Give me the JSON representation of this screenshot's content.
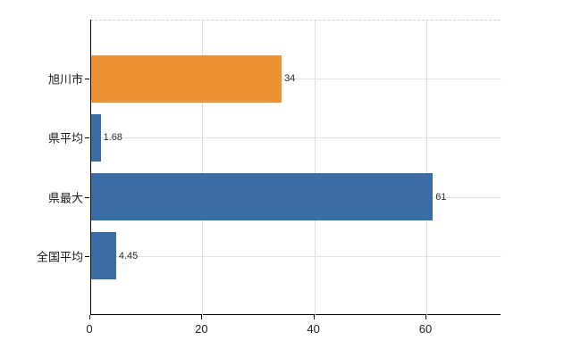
{
  "chart_data": {
    "type": "bar",
    "orientation": "horizontal",
    "title": "",
    "xlabel": "",
    "ylabel": "",
    "categories": [
      "旭川市",
      "県平均",
      "県最大",
      "全国平均"
    ],
    "values": [
      34,
      1.68,
      61,
      4.45
    ],
    "value_labels": [
      "34",
      "1.68",
      "61",
      "4.45"
    ],
    "bar_colors": [
      "#ee9335",
      "#3a6da6",
      "#3a6da6",
      "#3a6da6"
    ],
    "x_ticks": [
      0,
      20,
      40,
      60
    ],
    "x_tick_labels": [
      "0",
      "20",
      "40",
      "60"
    ],
    "xlim": [
      0,
      73.2
    ],
    "grid": true,
    "legend_position": "none",
    "colors": {
      "accent_orange": "#ee9335",
      "accent_blue": "#3a6da6",
      "gridline": "#dcdcdc",
      "axis": "#000000",
      "background": "#ffffff"
    }
  }
}
